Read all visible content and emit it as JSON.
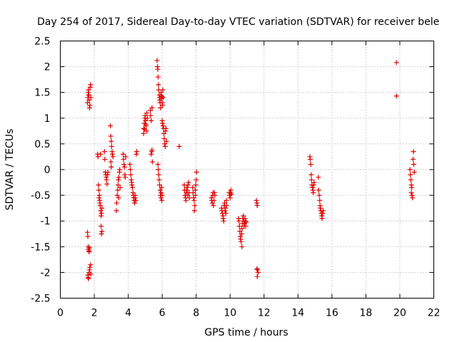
{
  "chart_data": {
    "type": "scatter",
    "title": "Day 254 of 2017, Sidereal Day-to-day VTEC variation (SDTVAR) for receiver bele",
    "xlabel": "GPS time / hours",
    "ylabel": "SDTVAR / TECUs",
    "xlim": [
      0,
      22
    ],
    "ylim": [
      -2.5,
      2.5
    ],
    "xticks": [
      0,
      2,
      4,
      6,
      8,
      10,
      12,
      14,
      16,
      18,
      20,
      22
    ],
    "yticks": [
      -2.5,
      -2,
      -1.5,
      -1,
      -0.5,
      0,
      0.5,
      1,
      1.5,
      2,
      2.5
    ],
    "xtick_labels": [
      "0",
      "2",
      "4",
      "6",
      "8",
      "10",
      "12",
      "14",
      "16",
      "18",
      "20",
      "22"
    ],
    "ytick_labels": [
      "-2.5",
      "-2",
      "-1.5",
      "-1",
      "-0.5",
      "0",
      "0.5",
      "1",
      "1.5",
      "2",
      "2.5"
    ],
    "grid": true,
    "marker": "+",
    "marker_color": "#e00000",
    "series": [
      {
        "name": "SDTVAR",
        "points": [
          [
            1.6,
            1.3
          ],
          [
            1.62,
            1.4
          ],
          [
            1.64,
            1.5
          ],
          [
            1.66,
            1.55
          ],
          [
            1.68,
            1.45
          ],
          [
            1.7,
            1.35
          ],
          [
            1.72,
            1.2
          ],
          [
            1.74,
            1.25
          ],
          [
            1.76,
            1.6
          ],
          [
            1.78,
            1.65
          ],
          [
            1.8,
            1.4
          ],
          [
            1.66,
            1.45
          ],
          [
            1.6,
            -1.22
          ],
          [
            1.62,
            -1.3
          ],
          [
            1.64,
            -1.5
          ],
          [
            1.66,
            -1.55
          ],
          [
            1.68,
            -1.58
          ],
          [
            1.7,
            -1.6
          ],
          [
            1.72,
            -1.52
          ],
          [
            1.62,
            -2.05
          ],
          [
            1.64,
            -2.1
          ],
          [
            1.66,
            -2.12
          ],
          [
            1.7,
            -2.0
          ],
          [
            1.72,
            -1.95
          ],
          [
            1.74,
            -1.9
          ],
          [
            1.78,
            -1.85
          ],
          [
            1.8,
            -2.03
          ],
          [
            2.2,
            0.3
          ],
          [
            2.22,
            0.25
          ],
          [
            2.25,
            -0.3
          ],
          [
            2.27,
            -0.4
          ],
          [
            2.3,
            -0.5
          ],
          [
            2.32,
            -0.6
          ],
          [
            2.35,
            -0.7
          ],
          [
            2.38,
            -0.8
          ],
          [
            2.4,
            -0.9
          ],
          [
            2.42,
            -0.85
          ],
          [
            2.45,
            -0.75
          ],
          [
            2.28,
            -0.55
          ],
          [
            2.33,
            -0.65
          ],
          [
            2.36,
            0.3
          ],
          [
            2.4,
            -1.1
          ],
          [
            2.42,
            -1.25
          ],
          [
            2.45,
            -1.2
          ],
          [
            2.6,
            0.35
          ],
          [
            2.62,
            0.2
          ],
          [
            2.65,
            -0.05
          ],
          [
            2.68,
            -0.1
          ],
          [
            2.7,
            -0.15
          ],
          [
            2.72,
            -0.2
          ],
          [
            2.75,
            -0.28
          ],
          [
            2.78,
            -0.1
          ],
          [
            2.8,
            -0.05
          ],
          [
            2.95,
            0.85
          ],
          [
            2.97,
            0.65
          ],
          [
            3.0,
            0.55
          ],
          [
            3.02,
            0.45
          ],
          [
            3.05,
            0.35
          ],
          [
            3.07,
            0.3
          ],
          [
            3.1,
            0.25
          ],
          [
            2.98,
            0.15
          ],
          [
            3.0,
            0.05
          ],
          [
            3.3,
            -0.8
          ],
          [
            3.32,
            -0.65
          ],
          [
            3.35,
            -0.5
          ],
          [
            3.38,
            -0.4
          ],
          [
            3.4,
            -0.3
          ],
          [
            3.42,
            -0.2
          ],
          [
            3.45,
            -0.15
          ],
          [
            3.48,
            -0.05
          ],
          [
            3.5,
            0.0
          ],
          [
            3.52,
            -0.35
          ],
          [
            3.44,
            -0.55
          ],
          [
            3.7,
            0.3
          ],
          [
            3.72,
            0.2
          ],
          [
            3.75,
            0.1
          ],
          [
            3.78,
            0.05
          ],
          [
            3.8,
            -0.1
          ],
          [
            3.82,
            -0.15
          ],
          [
            3.85,
            0.25
          ],
          [
            4.1,
            0.1
          ],
          [
            4.12,
            0.0
          ],
          [
            4.15,
            -0.1
          ],
          [
            4.18,
            -0.2
          ],
          [
            4.2,
            -0.25
          ],
          [
            4.22,
            -0.3
          ],
          [
            4.25,
            -0.35
          ],
          [
            4.28,
            -0.45
          ],
          [
            4.3,
            -0.5
          ],
          [
            4.32,
            -0.55
          ],
          [
            4.35,
            -0.6
          ],
          [
            4.38,
            -0.65
          ],
          [
            4.4,
            -0.5
          ],
          [
            4.42,
            -0.55
          ],
          [
            4.45,
            -0.6
          ],
          [
            4.48,
            0.3
          ],
          [
            4.5,
            0.35
          ],
          [
            4.9,
            0.7
          ],
          [
            4.92,
            0.8
          ],
          [
            4.95,
            0.9
          ],
          [
            4.98,
            1.0
          ],
          [
            5.0,
            1.05
          ],
          [
            5.02,
            0.95
          ],
          [
            5.05,
            0.85
          ],
          [
            5.08,
            0.75
          ],
          [
            5.1,
            1.1
          ],
          [
            5.12,
            1.0
          ],
          [
            4.96,
            0.78
          ],
          [
            5.04,
            0.88
          ],
          [
            5.35,
            0.3
          ],
          [
            5.38,
            0.35
          ],
          [
            5.4,
            0.38
          ],
          [
            5.3,
            1.15
          ],
          [
            5.32,
            1.05
          ],
          [
            5.35,
            0.95
          ],
          [
            5.4,
            1.2
          ],
          [
            5.42,
            0.15
          ],
          [
            5.7,
            2.12
          ],
          [
            5.72,
            2.0
          ],
          [
            5.74,
            1.95
          ],
          [
            5.76,
            1.8
          ],
          [
            5.78,
            1.65
          ],
          [
            5.8,
            1.55
          ],
          [
            5.82,
            1.45
          ],
          [
            5.84,
            1.4
          ],
          [
            5.86,
            1.35
          ],
          [
            5.88,
            1.3
          ],
          [
            5.9,
            1.2
          ],
          [
            5.92,
            1.45
          ],
          [
            5.94,
            1.5
          ],
          [
            5.96,
            1.38
          ],
          [
            5.98,
            1.42
          ],
          [
            6.0,
            1.3
          ],
          [
            6.02,
            1.25
          ],
          [
            6.04,
            1.55
          ],
          [
            6.06,
            1.4
          ],
          [
            5.75,
            0.1
          ],
          [
            5.77,
            0.0
          ],
          [
            5.8,
            -0.1
          ],
          [
            5.82,
            -0.2
          ],
          [
            5.85,
            -0.3
          ],
          [
            5.88,
            -0.4
          ],
          [
            5.9,
            -0.5
          ],
          [
            5.92,
            -0.55
          ],
          [
            5.94,
            -0.45
          ],
          [
            5.96,
            -0.35
          ],
          [
            5.98,
            -0.6
          ],
          [
            6.0,
            -0.5
          ],
          [
            6.0,
            0.95
          ],
          [
            6.02,
            0.9
          ],
          [
            6.05,
            0.85
          ],
          [
            6.08,
            0.8
          ],
          [
            6.1,
            0.7
          ],
          [
            6.12,
            0.6
          ],
          [
            6.15,
            0.5
          ],
          [
            6.18,
            0.45
          ],
          [
            6.2,
            0.75
          ],
          [
            6.22,
            0.8
          ],
          [
            6.25,
            0.55
          ],
          [
            7.0,
            0.45
          ],
          [
            7.3,
            -0.3
          ],
          [
            7.32,
            -0.4
          ],
          [
            7.35,
            -0.5
          ],
          [
            7.38,
            -0.55
          ],
          [
            7.4,
            -0.6
          ],
          [
            7.42,
            -0.45
          ],
          [
            7.45,
            -0.35
          ],
          [
            7.48,
            -0.4
          ],
          [
            7.5,
            -0.5
          ],
          [
            7.52,
            -0.3
          ],
          [
            7.55,
            -0.25
          ],
          [
            7.58,
            -0.45
          ],
          [
            7.6,
            -0.55
          ],
          [
            7.8,
            -0.35
          ],
          [
            7.82,
            -0.45
          ],
          [
            7.85,
            -0.55
          ],
          [
            7.88,
            -0.6
          ],
          [
            7.9,
            -0.8
          ],
          [
            7.92,
            -0.7
          ],
          [
            7.95,
            -0.4
          ],
          [
            7.98,
            -0.3
          ],
          [
            8.0,
            -0.2
          ],
          [
            8.02,
            -0.05
          ],
          [
            7.96,
            -0.5
          ],
          [
            8.9,
            -0.55
          ],
          [
            8.92,
            -0.6
          ],
          [
            8.95,
            -0.65
          ],
          [
            8.98,
            -0.5
          ],
          [
            9.0,
            -0.45
          ],
          [
            9.02,
            -0.7
          ],
          [
            9.05,
            -0.6
          ],
          [
            9.08,
            -0.45
          ],
          [
            9.1,
            -0.5
          ],
          [
            9.5,
            -0.75
          ],
          [
            9.52,
            -0.8
          ],
          [
            9.55,
            -0.85
          ],
          [
            9.58,
            -0.9
          ],
          [
            9.6,
            -0.95
          ],
          [
            9.62,
            -1.0
          ],
          [
            9.65,
            -0.7
          ],
          [
            9.68,
            -0.65
          ],
          [
            9.7,
            -0.8
          ],
          [
            9.72,
            -0.75
          ],
          [
            9.75,
            -0.85
          ],
          [
            9.78,
            -0.6
          ],
          [
            9.8,
            -0.7
          ],
          [
            9.95,
            -0.45
          ],
          [
            9.97,
            -0.5
          ],
          [
            10.0,
            -0.55
          ],
          [
            10.02,
            -0.45
          ],
          [
            10.05,
            -0.4
          ],
          [
            10.08,
            -0.48
          ],
          [
            10.5,
            -0.95
          ],
          [
            10.52,
            -1.0
          ],
          [
            10.55,
            -1.1
          ],
          [
            10.58,
            -1.2
          ],
          [
            10.6,
            -1.3
          ],
          [
            10.62,
            -1.35
          ],
          [
            10.65,
            -1.4
          ],
          [
            10.68,
            -1.25
          ],
          [
            10.7,
            -1.15
          ],
          [
            10.72,
            -1.05
          ],
          [
            10.75,
            -0.95
          ],
          [
            10.78,
            -0.9
          ],
          [
            10.8,
            -1.0
          ],
          [
            10.82,
            -1.1
          ],
          [
            10.85,
            -1.05
          ],
          [
            10.88,
            -0.95
          ],
          [
            10.9,
            -1.0
          ],
          [
            10.92,
            -1.1
          ],
          [
            10.95,
            -1.02
          ],
          [
            10.7,
            -1.5
          ],
          [
            11.55,
            -0.6
          ],
          [
            11.58,
            -0.65
          ],
          [
            11.6,
            -0.7
          ],
          [
            11.62,
            -1.95
          ],
          [
            11.65,
            -2.0
          ],
          [
            11.6,
            -2.08
          ],
          [
            11.58,
            -1.93
          ],
          [
            14.7,
            0.25
          ],
          [
            14.72,
            0.2
          ],
          [
            14.75,
            0.1
          ],
          [
            14.78,
            -0.1
          ],
          [
            14.8,
            -0.2
          ],
          [
            14.82,
            -0.3
          ],
          [
            14.85,
            -0.35
          ],
          [
            14.88,
            -0.4
          ],
          [
            14.9,
            -0.45
          ],
          [
            14.92,
            -0.3
          ],
          [
            14.95,
            -0.25
          ],
          [
            15.2,
            -0.15
          ],
          [
            15.22,
            -0.4
          ],
          [
            15.25,
            -0.5
          ],
          [
            15.28,
            -0.6
          ],
          [
            15.3,
            -0.7
          ],
          [
            15.32,
            -0.75
          ],
          [
            15.35,
            -0.8
          ],
          [
            15.38,
            -0.85
          ],
          [
            15.4,
            -0.9
          ],
          [
            15.42,
            -0.95
          ],
          [
            15.45,
            -0.85
          ],
          [
            15.48,
            -0.8
          ],
          [
            19.8,
            2.08
          ],
          [
            19.8,
            1.43
          ],
          [
            20.6,
            0.0
          ],
          [
            20.62,
            -0.1
          ],
          [
            20.65,
            -0.2
          ],
          [
            20.68,
            -0.3
          ],
          [
            20.7,
            -0.35
          ],
          [
            20.72,
            -0.5
          ],
          [
            20.75,
            -0.55
          ],
          [
            20.78,
            0.2
          ],
          [
            20.8,
            0.35
          ],
          [
            20.82,
            0.1
          ],
          [
            20.85,
            -0.05
          ],
          [
            20.68,
            -0.45
          ]
        ]
      }
    ]
  }
}
